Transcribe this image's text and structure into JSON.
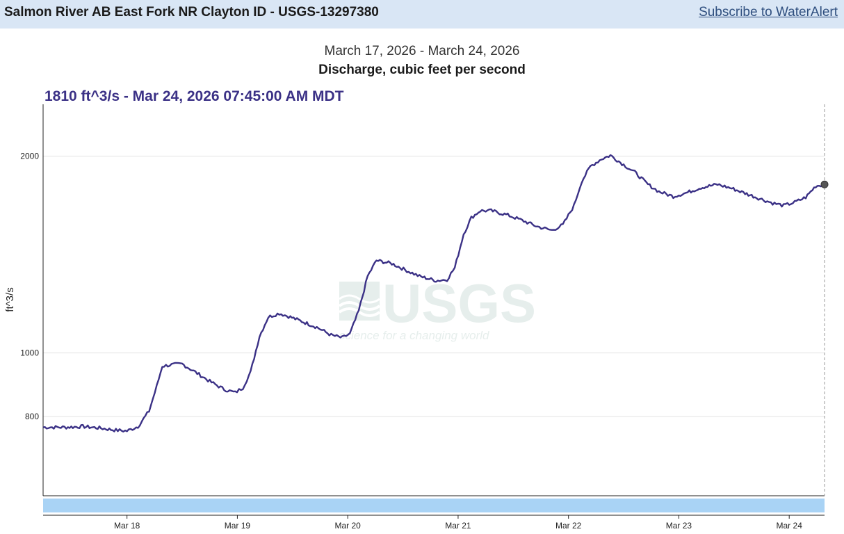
{
  "header": {
    "title": "Salmon River AB East Fork NR Clayton ID - USGS-13297380",
    "subscribe_label": "Subscribe to WaterAlert"
  },
  "chart_header": {
    "date_range": "March 17, 2026 - March 24, 2026",
    "parameter": "Discharge, cubic feet per second",
    "current_value": "1810 ft^3/s - Mar 24, 2026 07:45:00 AM MDT"
  },
  "watermark": {
    "logo_text": "USGS",
    "tagline": "science for a changing world"
  },
  "colors": {
    "series": "#3b3186",
    "brush": "#a9d3f5",
    "header_bg": "#d9e6f5",
    "link": "#2f4f7f"
  },
  "chart_data": {
    "type": "line",
    "ylabel": "ft^3/s",
    "y_scale": "log",
    "yticks": [
      800,
      1000,
      2000
    ],
    "ylim": [
      605,
      2400
    ],
    "x_unit": "days from Mar 17, 2026 00:00",
    "xlim": [
      0.24,
      7.32
    ],
    "xticks": [
      {
        "label": "Mar 18",
        "x": 1
      },
      {
        "label": "Mar 19",
        "x": 2
      },
      {
        "label": "Mar 20",
        "x": 3
      },
      {
        "label": "Mar 21",
        "x": 4
      },
      {
        "label": "Mar 22",
        "x": 5
      },
      {
        "label": "Mar 23",
        "x": 6
      },
      {
        "label": "Mar 24",
        "x": 7
      }
    ],
    "grid": true,
    "series": [
      {
        "name": "Discharge",
        "points": [
          [
            0.24,
            770
          ],
          [
            0.45,
            770
          ],
          [
            0.6,
            772
          ],
          [
            0.75,
            768
          ],
          [
            0.9,
            762
          ],
          [
            1.0,
            760
          ],
          [
            1.1,
            772
          ],
          [
            1.2,
            815
          ],
          [
            1.27,
            890
          ],
          [
            1.32,
            955
          ],
          [
            1.42,
            960
          ],
          [
            1.5,
            962
          ],
          [
            1.62,
            935
          ],
          [
            1.75,
            905
          ],
          [
            1.88,
            880
          ],
          [
            1.98,
            870
          ],
          [
            2.05,
            885
          ],
          [
            2.12,
            935
          ],
          [
            2.2,
            1060
          ],
          [
            2.28,
            1135
          ],
          [
            2.38,
            1150
          ],
          [
            2.48,
            1135
          ],
          [
            2.6,
            1115
          ],
          [
            2.72,
            1095
          ],
          [
            2.85,
            1065
          ],
          [
            2.95,
            1055
          ],
          [
            3.02,
            1070
          ],
          [
            3.1,
            1160
          ],
          [
            3.18,
            1310
          ],
          [
            3.26,
            1385
          ],
          [
            3.4,
            1370
          ],
          [
            3.52,
            1340
          ],
          [
            3.65,
            1310
          ],
          [
            3.8,
            1290
          ],
          [
            3.9,
            1295
          ],
          [
            3.97,
            1350
          ],
          [
            4.05,
            1520
          ],
          [
            4.12,
            1610
          ],
          [
            4.2,
            1650
          ],
          [
            4.3,
            1650
          ],
          [
            4.45,
            1625
          ],
          [
            4.58,
            1595
          ],
          [
            4.72,
            1560
          ],
          [
            4.85,
            1540
          ],
          [
            4.95,
            1570
          ],
          [
            5.05,
            1680
          ],
          [
            5.12,
            1830
          ],
          [
            5.2,
            1930
          ],
          [
            5.3,
            1980
          ],
          [
            5.38,
            2005
          ],
          [
            5.5,
            1940
          ],
          [
            5.6,
            1890
          ],
          [
            5.72,
            1810
          ],
          [
            5.82,
            1765
          ],
          [
            5.95,
            1735
          ],
          [
            6.08,
            1760
          ],
          [
            6.2,
            1790
          ],
          [
            6.35,
            1810
          ],
          [
            6.48,
            1785
          ],
          [
            6.6,
            1755
          ],
          [
            6.72,
            1725
          ],
          [
            6.85,
            1695
          ],
          [
            6.95,
            1680
          ],
          [
            7.05,
            1700
          ],
          [
            7.15,
            1730
          ],
          [
            7.24,
            1800
          ],
          [
            7.32,
            1810
          ]
        ]
      }
    ]
  }
}
